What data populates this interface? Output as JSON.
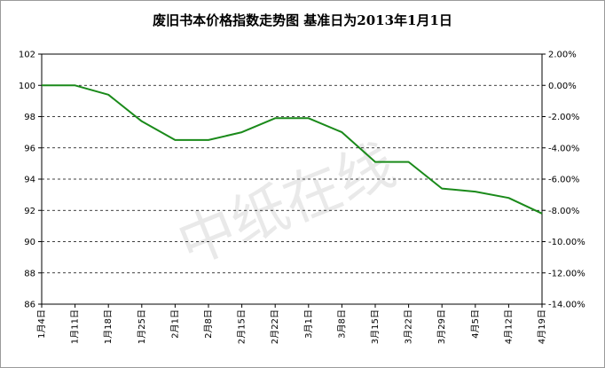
{
  "chart_data": {
    "type": "line",
    "title": "废旧书本价格指数走势图 基准日为2013年1月1日",
    "watermark": "中纸在线",
    "categories": [
      "1月4日",
      "1月11日",
      "1月18日",
      "1月25日",
      "2月1日",
      "2月8日",
      "2月15日",
      "2月22日",
      "3月1日",
      "3月8日",
      "3月15日",
      "3月22日",
      "3月29日",
      "4月5日",
      "4月12日",
      "4月19日"
    ],
    "series": [
      {
        "values": [
          100,
          100,
          99.4,
          97.7,
          96.5,
          96.5,
          97,
          97.9,
          97.9,
          97,
          95.1,
          95.1,
          93.4,
          93.2,
          92.8,
          91.8
        ],
        "color": "#1a8a1a"
      }
    ],
    "ylim": [
      86,
      102
    ],
    "yticks": [
      "86",
      "88",
      "90",
      "92",
      "94",
      "96",
      "98",
      "100",
      "102"
    ],
    "y2ticks": [
      "-14.00%",
      "-12.00%",
      "-10.00%",
      "-8.00%",
      "-6.00%",
      "-4.00%",
      "-2.00%",
      "0.00%",
      "2.00%"
    ],
    "grid": "horizontal-dashed",
    "legend": "none"
  }
}
